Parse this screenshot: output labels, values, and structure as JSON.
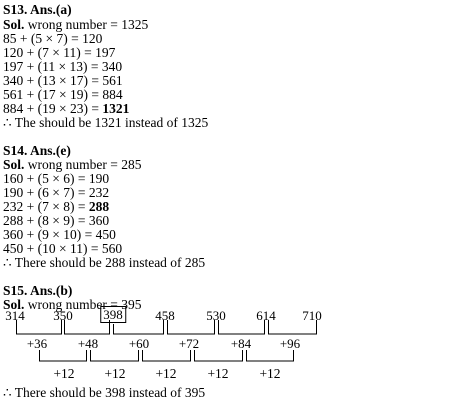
{
  "s13": {
    "heading": "S13. Ans.(a)",
    "sol_label": "Sol.",
    "sol_text": " wrong number = 1325",
    "steps": [
      "85 + (5 × 7) = 120",
      "120 + (7 × 11) = 197",
      "197 + (11 × 13) = 340",
      "340 + (13 × 17) = 561",
      "561 + (17 × 19) = 884"
    ],
    "last_step_prefix": "884 + (19 × 23) = ",
    "last_step_answer": "1321",
    "conclusion": "∴ The should be 1321 instead of 1325"
  },
  "s14": {
    "heading": "S14. Ans.(e)",
    "sol_label": "Sol.",
    "sol_text": " wrong number = 285",
    "steps_before": [
      "160 + (5 × 6) = 190",
      "190 + (6 × 7) = 232"
    ],
    "answer_step_prefix": "232 + (7 × 8) = ",
    "answer_step_value": "288",
    "steps_after": [
      "288 + (8 × 9) = 360",
      "360 + (9 × 10) = 450",
      "450 + (10 × 11) = 560"
    ],
    "conclusion": "∴ There should be 288 instead of 285"
  },
  "s15": {
    "heading": "S15. Ans.(b)",
    "sol_label": "Sol.",
    "sol_text": " wrong number = 395",
    "series": [
      "314",
      "350",
      "398",
      "458",
      "530",
      "614",
      "710"
    ],
    "boxed_index": 2,
    "first_differences": [
      "+36",
      "+48",
      "+60",
      "+72",
      "+84",
      "+96"
    ],
    "second_differences": [
      "+12",
      "+12",
      "+12",
      "+12",
      "+12"
    ],
    "conclusion": "∴ There should be 398 instead of 395"
  }
}
